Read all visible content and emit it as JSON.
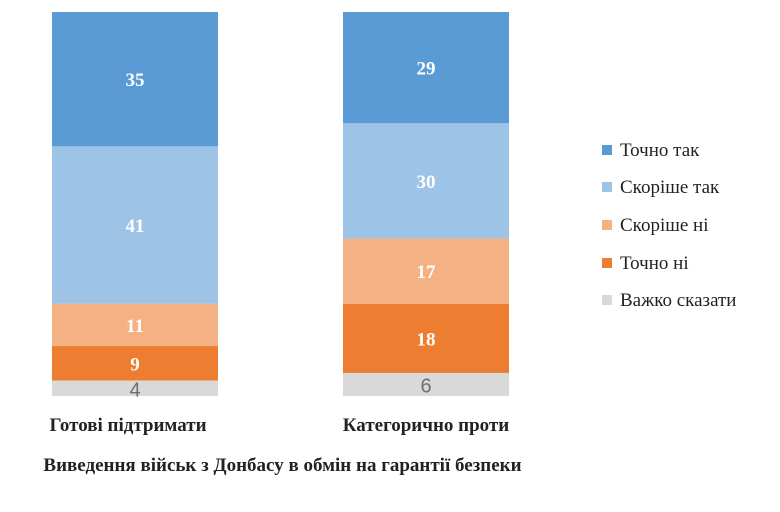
{
  "chart_data": {
    "type": "bar",
    "stacked": true,
    "title": "Виведення військ з Донбасу в обмін на гарантії безпеки",
    "categories": [
      "Готові підтримати",
      "Категорично проти"
    ],
    "series": [
      {
        "name": "Точно так",
        "color": "#5B9BD5",
        "values": [
          35,
          29
        ]
      },
      {
        "name": "Скоріше так",
        "color": "#9DC3E6",
        "values": [
          41,
          30
        ]
      },
      {
        "name": "Скоріше ні",
        "color": "#F4B183",
        "values": [
          11,
          17
        ]
      },
      {
        "name": "Точно ні",
        "color": "#ED7D31",
        "values": [
          9,
          18
        ]
      },
      {
        "name": "Важко сказати",
        "color": "#D9D9D9",
        "values": [
          4,
          6
        ]
      }
    ],
    "ylim": [
      0,
      100
    ],
    "grid": false,
    "legend": "right"
  }
}
